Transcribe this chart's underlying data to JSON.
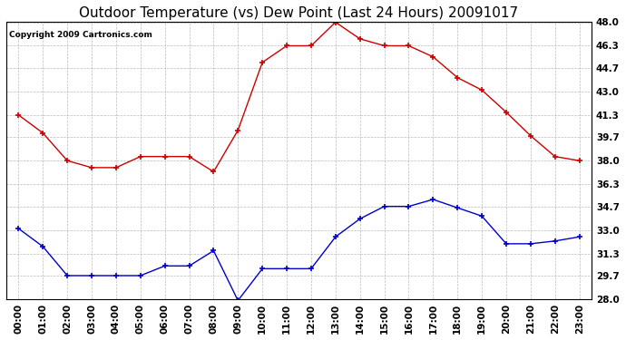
{
  "title": "Outdoor Temperature (vs) Dew Point (Last 24 Hours) 20091017",
  "copyright": "Copyright 2009 Cartronics.com",
  "x_labels": [
    "00:00",
    "01:00",
    "02:00",
    "03:00",
    "04:00",
    "05:00",
    "06:00",
    "07:00",
    "08:00",
    "09:00",
    "10:00",
    "11:00",
    "12:00",
    "13:00",
    "14:00",
    "15:00",
    "16:00",
    "17:00",
    "18:00",
    "19:00",
    "20:00",
    "21:00",
    "22:00",
    "23:00"
  ],
  "temp_data": [
    41.3,
    40.0,
    38.0,
    37.5,
    37.5,
    38.3,
    38.3,
    38.3,
    37.2,
    40.2,
    45.1,
    46.3,
    46.3,
    48.0,
    46.8,
    46.3,
    46.3,
    45.5,
    44.0,
    43.1,
    41.5,
    39.8,
    38.3,
    38.0
  ],
  "dew_data": [
    33.1,
    31.8,
    29.7,
    29.7,
    29.7,
    29.7,
    30.4,
    30.4,
    31.5,
    27.9,
    30.2,
    30.2,
    30.2,
    32.5,
    33.8,
    34.7,
    34.7,
    35.2,
    34.6,
    34.0,
    32.0,
    32.0,
    32.2,
    32.5
  ],
  "temp_color": "#cc0000",
  "dew_color": "#0000cc",
  "ylim_min": 28.0,
  "ylim_max": 48.0,
  "yticks": [
    28.0,
    29.7,
    31.3,
    33.0,
    34.7,
    36.3,
    38.0,
    39.7,
    41.3,
    43.0,
    44.7,
    46.3,
    48.0
  ],
  "background_color": "#ffffff",
  "plot_bg_color": "#ffffff",
  "grid_color": "#aaaaaa",
  "title_fontsize": 11,
  "copyright_fontsize": 6.5,
  "tick_fontsize": 7.5
}
